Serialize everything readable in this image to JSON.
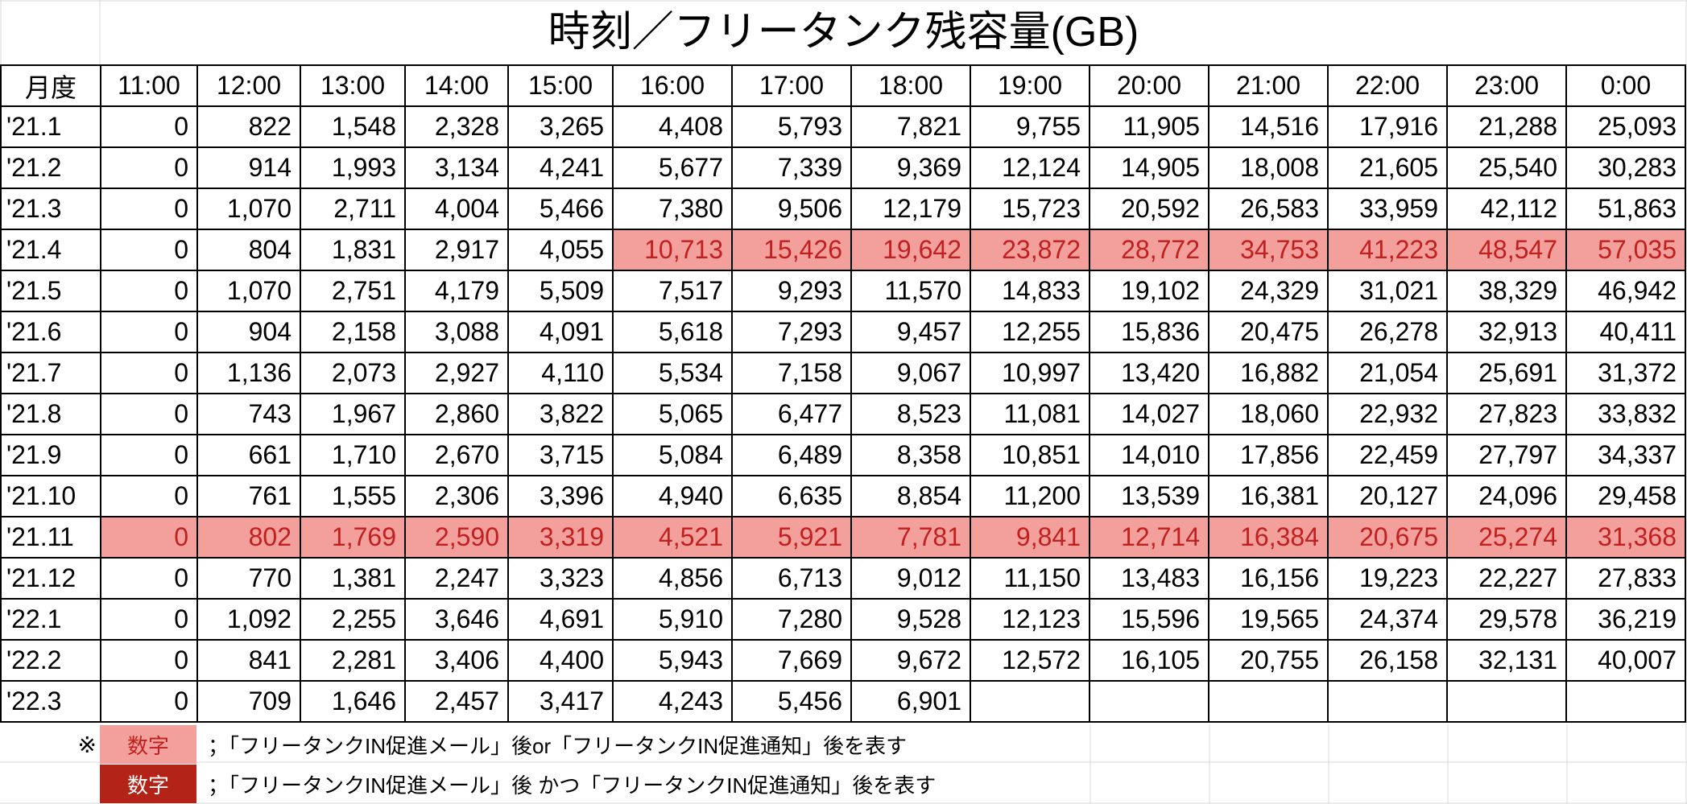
{
  "chart_data": {
    "type": "table",
    "title": "時刻／フリータンク残容量(GB)",
    "row_header": "月度",
    "columns": [
      "11:00",
      "12:00",
      "13:00",
      "14:00",
      "15:00",
      "16:00",
      "17:00",
      "18:00",
      "19:00",
      "20:00",
      "21:00",
      "22:00",
      "23:00",
      "0:00"
    ],
    "rows": [
      {
        "label": "'21.1",
        "values": [
          "0",
          "822",
          "1,548",
          "2,328",
          "3,265",
          "4,408",
          "5,793",
          "7,821",
          "9,755",
          "11,905",
          "14,516",
          "17,916",
          "21,288",
          "25,093"
        ],
        "highlight_from": null
      },
      {
        "label": "'21.2",
        "values": [
          "0",
          "914",
          "1,993",
          "3,134",
          "4,241",
          "5,677",
          "7,339",
          "9,369",
          "12,124",
          "14,905",
          "18,008",
          "21,605",
          "25,540",
          "30,283"
        ],
        "highlight_from": null
      },
      {
        "label": "'21.3",
        "values": [
          "0",
          "1,070",
          "2,711",
          "4,004",
          "5,466",
          "7,380",
          "9,506",
          "12,179",
          "15,723",
          "20,592",
          "26,583",
          "33,959",
          "42,112",
          "51,863"
        ],
        "highlight_from": null
      },
      {
        "label": "'21.4",
        "values": [
          "0",
          "804",
          "1,831",
          "2,917",
          "4,055",
          "10,713",
          "15,426",
          "19,642",
          "23,872",
          "28,772",
          "34,753",
          "41,223",
          "48,547",
          "57,035"
        ],
        "highlight_from": 5
      },
      {
        "label": "'21.5",
        "values": [
          "0",
          "1,070",
          "2,751",
          "4,179",
          "5,509",
          "7,517",
          "9,293",
          "11,570",
          "14,833",
          "19,102",
          "24,329",
          "31,021",
          "38,329",
          "46,942"
        ],
        "highlight_from": null
      },
      {
        "label": "'21.6",
        "values": [
          "0",
          "904",
          "2,158",
          "3,088",
          "4,091",
          "5,618",
          "7,293",
          "9,457",
          "12,255",
          "15,836",
          "20,475",
          "26,278",
          "32,913",
          "40,411"
        ],
        "highlight_from": null
      },
      {
        "label": "'21.7",
        "values": [
          "0",
          "1,136",
          "2,073",
          "2,927",
          "4,110",
          "5,534",
          "7,158",
          "9,067",
          "10,997",
          "13,420",
          "16,882",
          "21,054",
          "25,691",
          "31,372"
        ],
        "highlight_from": null
      },
      {
        "label": "'21.8",
        "values": [
          "0",
          "743",
          "1,967",
          "2,860",
          "3,822",
          "5,065",
          "6,477",
          "8,523",
          "11,081",
          "14,027",
          "18,060",
          "22,932",
          "27,823",
          "33,832"
        ],
        "highlight_from": null
      },
      {
        "label": "'21.9",
        "values": [
          "0",
          "661",
          "1,710",
          "2,670",
          "3,715",
          "5,084",
          "6,489",
          "8,358",
          "10,851",
          "14,010",
          "17,856",
          "22,459",
          "27,797",
          "34,337"
        ],
        "highlight_from": null
      },
      {
        "label": "'21.10",
        "values": [
          "0",
          "761",
          "1,555",
          "2,306",
          "3,396",
          "4,940",
          "6,635",
          "8,854",
          "11,200",
          "13,539",
          "16,381",
          "20,127",
          "24,096",
          "29,458"
        ],
        "highlight_from": null
      },
      {
        "label": "'21.11",
        "values": [
          "0",
          "802",
          "1,769",
          "2,590",
          "3,319",
          "4,521",
          "5,921",
          "7,781",
          "9,841",
          "12,714",
          "16,384",
          "20,675",
          "25,274",
          "31,368"
        ],
        "highlight_from": 0
      },
      {
        "label": "'21.12",
        "values": [
          "0",
          "770",
          "1,381",
          "2,247",
          "3,323",
          "4,856",
          "6,713",
          "9,012",
          "11,150",
          "13,483",
          "16,156",
          "19,223",
          "22,227",
          "27,833"
        ],
        "highlight_from": null
      },
      {
        "label": "'22.1",
        "values": [
          "0",
          "1,092",
          "2,255",
          "3,646",
          "4,691",
          "5,910",
          "7,280",
          "9,528",
          "12,123",
          "15,596",
          "19,565",
          "24,374",
          "29,578",
          "36,219"
        ],
        "highlight_from": null
      },
      {
        "label": "'22.2",
        "values": [
          "0",
          "841",
          "2,281",
          "3,406",
          "4,400",
          "5,943",
          "7,669",
          "9,672",
          "12,572",
          "16,105",
          "20,755",
          "26,158",
          "32,131",
          "40,007"
        ],
        "highlight_from": null
      },
      {
        "label": "'22.3",
        "values": [
          "0",
          "709",
          "1,646",
          "2,457",
          "3,417",
          "4,243",
          "5,456",
          "6,901",
          "",
          "",
          "",
          "",
          "",
          ""
        ],
        "highlight_from": null
      }
    ],
    "legend": [
      {
        "mark": "※",
        "swatch_text": "数字",
        "style": "light",
        "text": "；「フリータンクIN促進メール」後or「フリータンクIN促進通知」後を表す",
        "color": "#f3a09d"
      },
      {
        "mark": "",
        "swatch_text": "数字",
        "style": "dark",
        "text": "；「フリータンクIN促進メール」後 かつ「フリータンクIN促進通知」後を表す",
        "color": "#b32318"
      }
    ]
  }
}
